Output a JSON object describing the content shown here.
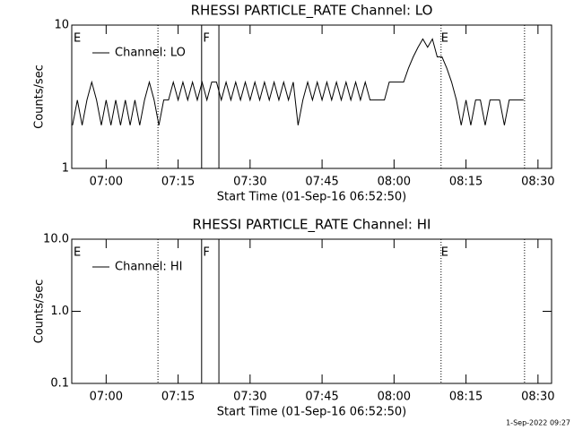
{
  "chart_data": [
    {
      "type": "line",
      "title": "RHESSI PARTICLE_RATE Channel: LO",
      "xlabel": "Start Time (01-Sep-16 06:52:50)",
      "ylabel": "Counts/sec",
      "log_y": true,
      "ylim": [
        1,
        10
      ],
      "yticks": [
        1,
        10
      ],
      "xlim": [
        412.833,
        512.833
      ],
      "xticks": [
        {
          "value": 420,
          "label": "07:00"
        },
        {
          "value": 435,
          "label": "07:15"
        },
        {
          "value": 450,
          "label": "07:30"
        },
        {
          "value": 465,
          "label": "07:45"
        },
        {
          "value": 480,
          "label": "08:00"
        },
        {
          "value": 495,
          "label": "08:15"
        },
        {
          "value": 510,
          "label": "08:30"
        }
      ],
      "legend": "upper left",
      "vlines": [
        {
          "x": 430.8,
          "style": "dotted"
        },
        {
          "x": 439.9,
          "style": "solid"
        },
        {
          "x": 443.5,
          "style": "solid"
        },
        {
          "x": 489.8,
          "style": "dotted"
        },
        {
          "x": 507.2,
          "style": "dotted"
        }
      ],
      "annotations": [
        {
          "x": 413.2,
          "label": "E"
        },
        {
          "x": 440.2,
          "label": "F"
        },
        {
          "x": 489.8,
          "label": "E"
        }
      ],
      "series": [
        {
          "name": "Channel: LO",
          "color": "#000000",
          "x": [
            413,
            414,
            415,
            416,
            417,
            418,
            419,
            420,
            421,
            422,
            423,
            424,
            425,
            426,
            427,
            428,
            429,
            430,
            431,
            432,
            433,
            434,
            435,
            436,
            437,
            438,
            439,
            440,
            441,
            442,
            443,
            444,
            445,
            446,
            447,
            448,
            449,
            450,
            451,
            452,
            453,
            454,
            455,
            456,
            457,
            458,
            459,
            460,
            461,
            462,
            463,
            464,
            465,
            466,
            467,
            468,
            469,
            470,
            471,
            472,
            473,
            474,
            475,
            476,
            477,
            478,
            479,
            480,
            481,
            482,
            483,
            484,
            485,
            486,
            487,
            488,
            489,
            490,
            491,
            492,
            493,
            494,
            495,
            496,
            497,
            498,
            499,
            500,
            501,
            502,
            503,
            504,
            505,
            506,
            507
          ],
          "values": [
            2,
            3,
            2,
            3,
            4,
            3,
            2,
            3,
            2,
            3,
            2,
            3,
            2,
            3,
            2,
            3,
            4,
            3,
            2,
            3,
            3,
            4,
            3,
            4,
            3,
            4,
            3,
            4,
            3,
            4,
            4,
            3,
            4,
            3,
            4,
            3,
            4,
            3,
            4,
            3,
            4,
            3,
            4,
            3,
            4,
            3,
            4,
            2,
            3,
            4,
            3,
            4,
            3,
            4,
            3,
            4,
            3,
            4,
            3,
            4,
            3,
            4,
            3,
            3,
            3,
            3,
            4,
            4,
            4,
            4,
            5,
            6,
            7,
            8,
            7,
            8,
            6,
            6,
            5,
            4,
            3,
            2,
            3,
            2,
            3,
            3,
            2,
            3,
            3,
            3,
            2,
            3,
            3,
            3,
            3
          ]
        }
      ]
    },
    {
      "type": "line",
      "title": "RHESSI PARTICLE_RATE Channel: HI",
      "xlabel": "Start Time (01-Sep-16 06:52:50)",
      "ylabel": "Counts/sec",
      "log_y": true,
      "ylim": [
        0.1,
        10
      ],
      "yticks": [
        {
          "value": 0.1,
          "label": "0.1"
        },
        {
          "value": 1,
          "label": "1.0"
        },
        {
          "value": 10,
          "label": "10.0"
        }
      ],
      "xlim": [
        412.833,
        512.833
      ],
      "xticks": [
        {
          "value": 420,
          "label": "07:00"
        },
        {
          "value": 435,
          "label": "07:15"
        },
        {
          "value": 450,
          "label": "07:30"
        },
        {
          "value": 465,
          "label": "07:45"
        },
        {
          "value": 480,
          "label": "08:00"
        },
        {
          "value": 495,
          "label": "08:15"
        },
        {
          "value": 510,
          "label": "08:30"
        }
      ],
      "legend": "upper left",
      "vlines": [
        {
          "x": 430.8,
          "style": "dotted"
        },
        {
          "x": 439.9,
          "style": "solid"
        },
        {
          "x": 443.5,
          "style": "solid"
        },
        {
          "x": 489.8,
          "style": "dotted"
        },
        {
          "x": 507.2,
          "style": "dotted"
        }
      ],
      "annotations": [
        {
          "x": 413.2,
          "label": "E"
        },
        {
          "x": 440.2,
          "label": "F"
        },
        {
          "x": 489.8,
          "label": "E"
        }
      ],
      "series": [
        {
          "name": "Channel: HI",
          "color": "#000000",
          "x": [],
          "values": []
        }
      ]
    }
  ],
  "footer": "1-Sep-2022 09:27"
}
